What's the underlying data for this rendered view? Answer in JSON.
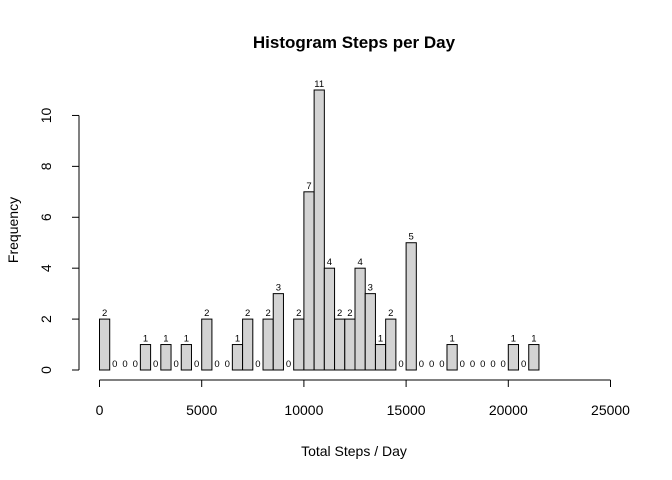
{
  "chart_data": {
    "type": "bar",
    "title": "Histogram  Steps per Day",
    "xlabel": "Total Steps / Day",
    "ylabel": "Frequency",
    "bin_width": 500,
    "bin_start": 0,
    "values": [
      2,
      0,
      0,
      0,
      1,
      0,
      1,
      0,
      1,
      0,
      2,
      0,
      0,
      1,
      2,
      0,
      2,
      3,
      0,
      2,
      7,
      11,
      4,
      2,
      2,
      4,
      3,
      1,
      2,
      0,
      5,
      0,
      0,
      0,
      1,
      0,
      0,
      0,
      0,
      0,
      1,
      0,
      1
    ],
    "xlim": [
      0,
      25000
    ],
    "ylim": [
      0,
      11
    ],
    "x_ticks": [
      0,
      5000,
      10000,
      15000,
      20000,
      25000
    ],
    "y_ticks": [
      0,
      2,
      4,
      6,
      8,
      10
    ],
    "show_bar_labels": true,
    "grid": false,
    "bar_color": "#d3d3d3"
  }
}
